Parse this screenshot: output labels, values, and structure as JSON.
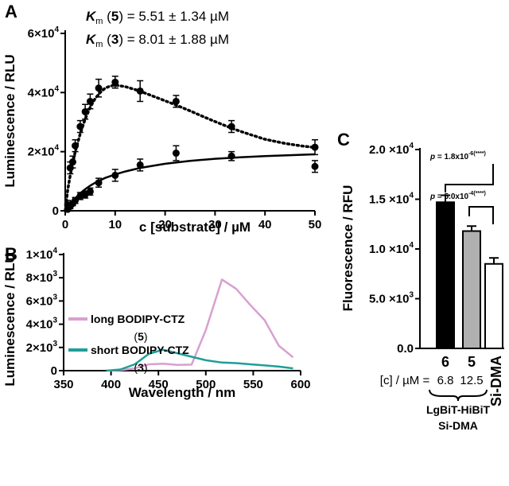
{
  "chart_data": [
    {
      "id": "A",
      "type": "scatter",
      "panel_label": "A",
      "xlabel": "c [substrate] / µM",
      "ylabel": "Luminescence / RLU",
      "xlim": [
        0,
        50
      ],
      "ylim": [
        0,
        60000
      ],
      "x_ticks": [
        0,
        10,
        20,
        30,
        40,
        50
      ],
      "x_tick_labels": [
        "0",
        "10",
        "20",
        "30",
        "40",
        "50"
      ],
      "y_ticks": [
        0,
        20000,
        40000,
        60000
      ],
      "y_tick_labels": [
        {
          "mant": "0",
          "exp": ""
        },
        {
          "mant": "2×10",
          "exp": "4"
        },
        {
          "mant": "4×10",
          "exp": "4"
        },
        {
          "mant": "6×10",
          "exp": "4"
        }
      ],
      "annotations": [
        {
          "pre": "K",
          "sub": "m",
          "mid": " (",
          "num": "5",
          "post": ") = 5.51 ± 1.34 µM"
        },
        {
          "pre": "K",
          "sub": "m",
          "mid": " (",
          "num": "3",
          "post": ") = 8.01 ± 1.88 µM"
        }
      ],
      "series": [
        {
          "name": "long BODIPY-CTZ (5)",
          "line_style": "dotted",
          "x": [
            0.5,
            1,
            1.5,
            2,
            3,
            4,
            5,
            6.7,
            10,
            15,
            22.2,
            33.3,
            50
          ],
          "y": [
            2000,
            14500,
            16500,
            22000,
            28500,
            33500,
            37000,
            41500,
            43500,
            40500,
            37000,
            28500,
            21500
          ],
          "err": [
            1500,
            2000,
            2000,
            2000,
            2000,
            2500,
            2500,
            3000,
            2000,
            3500,
            2000,
            2000,
            2500
          ],
          "fit_x": [
            0,
            0.5,
            1,
            1.5,
            2,
            3,
            4,
            5,
            6,
            7,
            8,
            9,
            10,
            12,
            14,
            16,
            18,
            20,
            22,
            25,
            28,
            31,
            34,
            37,
            40,
            44,
            47,
            50
          ],
          "fit_y": [
            0,
            7000,
            12000,
            16000,
            20000,
            26000,
            31000,
            35000,
            38000,
            40000,
            41500,
            42200,
            42500,
            42000,
            41000,
            39800,
            38500,
            37200,
            35900,
            33800,
            31600,
            29500,
            27500,
            25800,
            24200,
            22800,
            22000,
            21400
          ]
        },
        {
          "name": "short BODIPY-CTZ (3)",
          "line_style": "solid",
          "x": [
            0.5,
            1,
            1.5,
            2,
            3,
            4,
            5,
            6.7,
            10,
            15,
            22.2,
            33.3,
            50
          ],
          "y": [
            500,
            1500,
            2500,
            3500,
            5000,
            5500,
            6500,
            9500,
            12000,
            15500,
            19500,
            18500,
            15000
          ],
          "err": [
            500,
            800,
            800,
            1000,
            1200,
            1200,
            1200,
            1500,
            2000,
            2000,
            2500,
            1500,
            2000
          ],
          "fit_x": [
            0,
            1,
            2,
            3,
            4,
            5,
            6,
            8,
            10,
            12,
            15,
            20,
            25,
            30,
            35,
            40,
            45,
            50
          ],
          "fit_y": [
            0,
            2200,
            4200,
            5900,
            7300,
            8500,
            9500,
            11100,
            12300,
            13300,
            14500,
            15900,
            16900,
            17600,
            18100,
            18500,
            18800,
            19100
          ]
        }
      ]
    },
    {
      "id": "B",
      "type": "line",
      "panel_label": "B",
      "xlabel": "Wavelength / nm",
      "ylabel": "Luminescence / RLU",
      "xlim": [
        350,
        600
      ],
      "ylim": [
        0,
        10000
      ],
      "x_ticks": [
        350,
        400,
        450,
        500,
        550,
        600
      ],
      "x_tick_labels": [
        "350",
        "400",
        "450",
        "500",
        "550",
        "600"
      ],
      "y_ticks": [
        0,
        2000,
        4000,
        6000,
        8000,
        10000
      ],
      "y_tick_labels": [
        {
          "mant": "0",
          "exp": ""
        },
        {
          "mant": "2×10",
          "exp": "3"
        },
        {
          "mant": "4×10",
          "exp": "3"
        },
        {
          "mant": "6×10",
          "exp": "3"
        },
        {
          "mant": "8×10",
          "exp": "3"
        },
        {
          "mant": "1×10",
          "exp": "4"
        }
      ],
      "series": [
        {
          "name": "long BODIPY-CTZ",
          "name_num": "(5)",
          "color": "#d9a0cf",
          "x": [
            395,
            410,
            425,
            440,
            455,
            470,
            485,
            500,
            517,
            532,
            547,
            562,
            577,
            592
          ],
          "y": [
            0,
            50,
            200,
            550,
            600,
            500,
            520,
            3500,
            7850,
            7050,
            5650,
            4350,
            2150,
            1150
          ]
        },
        {
          "name": "short BODIPY-CTZ",
          "name_num": "(3)",
          "color": "#1f9e98",
          "x": [
            395,
            410,
            425,
            440,
            455,
            470,
            485,
            500,
            517,
            532,
            547,
            562,
            577,
            592
          ],
          "y": [
            0,
            100,
            550,
            1450,
            1800,
            1500,
            1200,
            900,
            700,
            650,
            550,
            450,
            350,
            200
          ]
        }
      ]
    },
    {
      "id": "C",
      "type": "bar",
      "panel_label": "C",
      "ylabel": "Fluorescence / RFU",
      "ylim": [
        0,
        20000
      ],
      "y_ticks": [
        0,
        5000,
        10000,
        15000,
        20000
      ],
      "y_tick_labels": [
        {
          "mant": "0.0",
          "exp": ""
        },
        {
          "mant": "5.0 ×10",
          "exp": "3"
        },
        {
          "mant": "1.0 ×10",
          "exp": "4"
        },
        {
          "mant": "1.5 ×10",
          "exp": "4"
        },
        {
          "mant": "2.0 ×10",
          "exp": "4"
        }
      ],
      "categories": [
        "6",
        "5",
        "Si-DMA"
      ],
      "values": [
        14700,
        11800,
        8500
      ],
      "errors": [
        700,
        500,
        600
      ],
      "colors": [
        "#000000",
        "#b0b0b0",
        "#ffffff"
      ],
      "conc_label": "[c] / µM =",
      "concentrations": [
        "6.8",
        "12.5"
      ],
      "group_label_line1": "LgBiT-HiBiT",
      "group_label_line2": "Si-DMA",
      "comparisons": [
        {
          "pre": "p",
          "mid": " = 1.8x10",
          "exp": "-6",
          "post": "(****)"
        },
        {
          "pre": "p",
          "mid": " = 5.0x10",
          "exp": "-4",
          "post": "(****)"
        }
      ]
    }
  ]
}
